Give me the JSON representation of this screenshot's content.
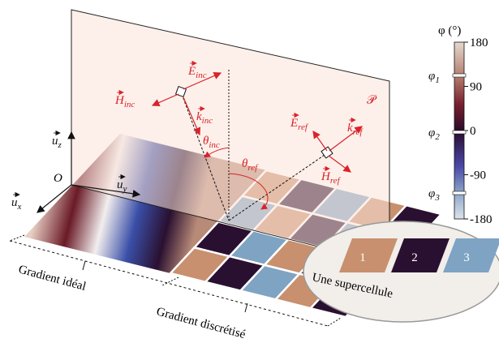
{
  "plane_label": "𝒫",
  "axes": {
    "origin": "O",
    "x": {
      "symbol": "u",
      "sub": "x"
    },
    "y": {
      "symbol": "u",
      "sub": "y"
    },
    "z": {
      "symbol": "u",
      "sub": "z"
    }
  },
  "incident": {
    "E": {
      "symbol": "E",
      "sub": "inc"
    },
    "H": {
      "symbol": "H",
      "sub": "inc"
    },
    "k": {
      "symbol": "k",
      "sub": "inc"
    },
    "theta": {
      "symbol": "θ",
      "sub": "inc"
    }
  },
  "reflected": {
    "E": {
      "symbol": "E",
      "sub": "ref"
    },
    "H": {
      "symbol": "H",
      "sub": "ref"
    },
    "k": {
      "symbol": "k",
      "sub": "ref"
    },
    "theta": {
      "symbol": "θ",
      "sub": "ref"
    }
  },
  "regions": {
    "ideal": "Gradient idéal",
    "discrete": "Gradient discrétisé"
  },
  "supercell": {
    "label": "Une supercellule",
    "cells": [
      "1",
      "2",
      "3"
    ]
  },
  "colorbar": {
    "label": "φ (°)",
    "lim": [
      -180,
      180
    ],
    "ticks": [
      180,
      90,
      0,
      -90,
      -180
    ],
    "markers": [
      {
        "symbol": "φ",
        "sub": "1"
      },
      {
        "symbol": "φ",
        "sub": "2"
      },
      {
        "symbol": "φ",
        "sub": "3"
      }
    ]
  }
}
